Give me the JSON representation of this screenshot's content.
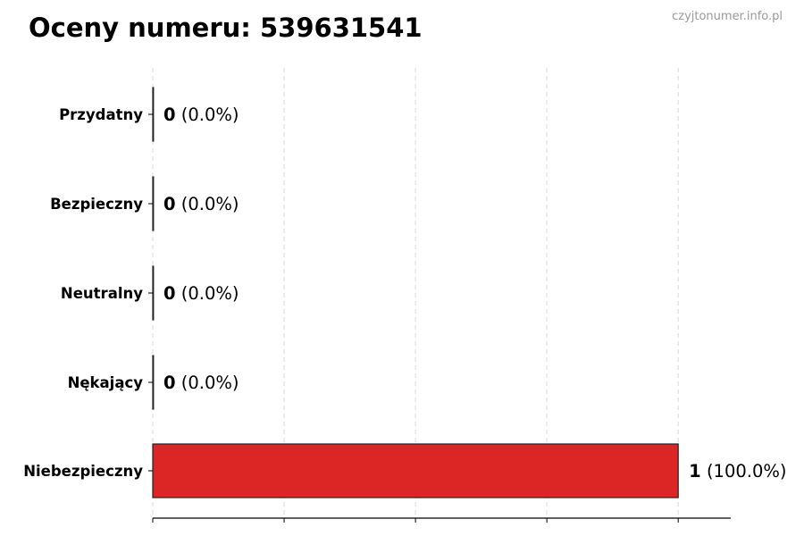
{
  "chart_data": {
    "type": "bar",
    "orientation": "horizontal",
    "title": "Oceny numeru: 539631541",
    "watermark": "czyjtonumer.info.pl",
    "categories": [
      "Przydatny",
      "Bezpieczny",
      "Neutralny",
      "Nękający",
      "Niebezpieczny"
    ],
    "values": [
      0,
      0,
      0,
      0,
      1
    ],
    "labels": [
      "(0.0%)",
      "(0.0%)",
      "(0.0%)",
      "(0.0%)",
      "(100.0%)"
    ],
    "xlim": [
      0,
      1.1
    ],
    "xticks": [
      0,
      0.25,
      0.5,
      0.75,
      1
    ],
    "xtick_labels_shown": false,
    "grid": "vertical dashed",
    "colors": {
      "bar": "#dc2626",
      "edge": "#222222",
      "grid": "#d9d9d9",
      "watermark": "#999999"
    }
  }
}
